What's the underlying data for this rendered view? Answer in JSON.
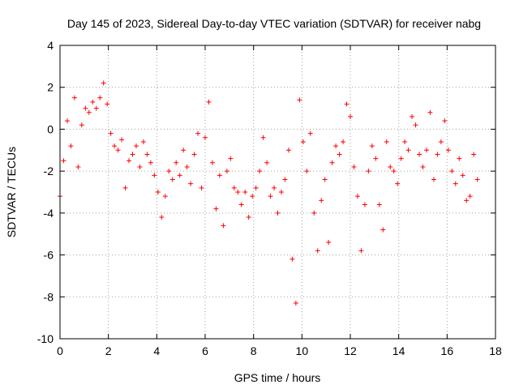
{
  "chart_data": {
    "type": "scatter",
    "title": "Day 145 of 2023, Sidereal Day-to-day VTEC variation (SDTVAR) for receiver nabg",
    "xlabel": "GPS time / hours",
    "ylabel": "SDTVAR / TECUs",
    "xlim": [
      0,
      18
    ],
    "ylim": [
      -10,
      4
    ],
    "xticks": [
      "0",
      "2",
      "4",
      "6",
      "8",
      "10",
      "12",
      "14",
      "16",
      "18"
    ],
    "yticks": [
      "4",
      "2",
      "0",
      "-2",
      "-4",
      "-6",
      "-8",
      "-10"
    ],
    "grid": true,
    "marker": "+",
    "series": [
      {
        "name": "SDTVAR",
        "color": "#ff0000",
        "x": [
          0.0,
          0.15,
          0.3,
          0.45,
          0.6,
          0.75,
          0.9,
          1.05,
          1.2,
          1.35,
          1.5,
          1.65,
          1.8,
          1.95,
          2.1,
          2.25,
          2.4,
          2.55,
          2.7,
          2.85,
          3.0,
          3.15,
          3.3,
          3.45,
          3.6,
          3.75,
          3.9,
          4.05,
          4.2,
          4.35,
          4.5,
          4.65,
          4.8,
          4.95,
          5.1,
          5.25,
          5.4,
          5.55,
          5.7,
          5.85,
          6.0,
          6.15,
          6.3,
          6.45,
          6.6,
          6.75,
          6.9,
          7.05,
          7.2,
          7.35,
          7.5,
          7.65,
          7.8,
          7.95,
          8.1,
          8.25,
          8.4,
          8.55,
          8.7,
          8.85,
          9.0,
          9.15,
          9.3,
          9.45,
          9.6,
          9.75,
          9.9,
          10.05,
          10.2,
          10.35,
          10.5,
          10.65,
          10.8,
          10.95,
          11.1,
          11.25,
          11.4,
          11.55,
          11.7,
          11.85,
          12.0,
          12.15,
          12.3,
          12.45,
          12.6,
          12.75,
          12.9,
          13.05,
          13.2,
          13.35,
          13.5,
          13.65,
          13.8,
          13.95,
          14.1,
          14.25,
          14.4,
          14.55,
          14.7,
          14.85,
          15.0,
          15.15,
          15.3,
          15.45,
          15.6,
          15.75,
          15.9,
          16.05,
          16.2,
          16.35,
          16.5,
          16.65,
          16.8,
          16.95,
          17.1,
          17.25
        ],
        "y": [
          -3.2,
          -1.5,
          0.4,
          -0.8,
          1.5,
          -1.8,
          0.2,
          1.0,
          0.8,
          1.3,
          1.0,
          1.5,
          2.2,
          1.2,
          -0.2,
          -0.8,
          -1.0,
          -0.5,
          -2.8,
          -1.5,
          -1.2,
          -0.8,
          -1.8,
          -0.6,
          -1.2,
          -1.6,
          -2.2,
          -3.0,
          -4.2,
          -3.2,
          -2.0,
          -2.4,
          -1.6,
          -2.2,
          -1.0,
          -1.8,
          -2.6,
          -1.2,
          -0.2,
          -2.8,
          -0.4,
          1.3,
          -1.6,
          -3.8,
          -2.2,
          -4.6,
          -2.0,
          -1.4,
          -2.8,
          -3.0,
          -3.6,
          -3.0,
          -4.2,
          -3.2,
          -2.8,
          -2.0,
          -0.4,
          -1.6,
          -3.2,
          -2.8,
          -4.0,
          -3.0,
          -2.4,
          -1.0,
          -6.2,
          -8.3,
          1.4,
          -0.6,
          -2.0,
          -0.2,
          -4.0,
          -5.8,
          -3.4,
          -2.4,
          -5.4,
          -1.6,
          -0.8,
          -1.2,
          -0.6,
          1.2,
          0.6,
          -1.8,
          -3.2,
          -5.8,
          -3.6,
          -2.0,
          -0.8,
          -1.4,
          -3.6,
          -4.8,
          -0.6,
          -1.8,
          -2.0,
          -2.6,
          -1.4,
          -0.6,
          -1.0,
          0.6,
          0.2,
          -1.2,
          -1.8,
          -1.0,
          0.8,
          -2.4,
          -1.2,
          -0.6,
          0.4,
          -1.0,
          -2.0,
          -2.6,
          -1.4,
          -2.2,
          -3.4,
          -3.2,
          -1.2,
          -2.4
        ]
      }
    ]
  }
}
